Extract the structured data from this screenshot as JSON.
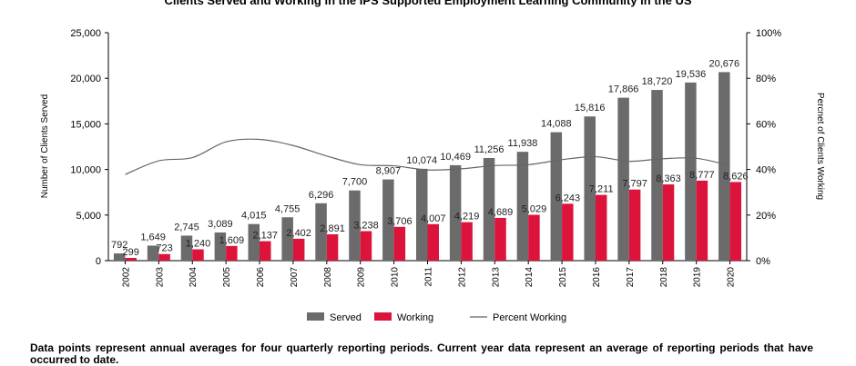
{
  "chart_data": {
    "type": "bar",
    "title": "Clients Served and Working in the IPS Supported Employment Learning Community in the US",
    "ylabel": "Number of Clients Served",
    "y2label": "Percnet of Clients Working",
    "ylim": [
      0,
      25000
    ],
    "y2lim": [
      0,
      100
    ],
    "yticks": [
      "0",
      "5,000",
      "10,000",
      "15,000",
      "20,000",
      "25,000"
    ],
    "y2ticks": [
      "0%",
      "20%",
      "40%",
      "60%",
      "80%",
      "100%"
    ],
    "categories": [
      "2002",
      "2003",
      "2004",
      "2005",
      "2006",
      "2007",
      "2008",
      "2009",
      "2010",
      "2011",
      "2012",
      "2013",
      "2014",
      "2015",
      "2016",
      "2017",
      "2018",
      "2019",
      "2020"
    ],
    "series": [
      {
        "name": "Served",
        "color": "#6b6b6b",
        "values": [
          792,
          1649,
          2745,
          3089,
          4015,
          4755,
          6296,
          7700,
          8907,
          10074,
          10469,
          11256,
          11938,
          14088,
          15816,
          17866,
          18720,
          19536,
          20676
        ],
        "labels": [
          "792",
          "1,649",
          "2,745",
          "3,089",
          "4,015",
          "4,755",
          "6,296",
          "7,700",
          "8,907",
          "10,074",
          "10,469",
          "11,256",
          "11,938",
          "14,088",
          "15,816",
          "17,866",
          "18,720",
          "19,536",
          "20,676"
        ]
      },
      {
        "name": "Working",
        "color": "#dc143c",
        "values": [
          299,
          723,
          1240,
          1609,
          2137,
          2402,
          2891,
          3238,
          3706,
          4007,
          4219,
          4689,
          5029,
          6243,
          7211,
          7797,
          8363,
          8777,
          8626
        ],
        "labels": [
          "299",
          "723",
          "1,240",
          "1,609",
          "2,137",
          "2,402",
          "2,891",
          "3,238",
          "3,706",
          "4,007",
          "4,219",
          "4,689",
          "5,029",
          "6,243",
          "7,211",
          "7,797",
          "8,363",
          "8,777",
          "8,626"
        ]
      },
      {
        "name": "Percent Working",
        "color": "#666666",
        "axis": "right",
        "values": [
          37.8,
          43.8,
          45.2,
          52.1,
          53.2,
          50.5,
          45.9,
          42.1,
          41.6,
          39.8,
          40.3,
          41.7,
          42.1,
          44.3,
          45.6,
          43.6,
          44.7,
          44.9,
          41.7
        ]
      }
    ],
    "legend_position": "bottom"
  },
  "footnote": "Data points represent annual averages for four quarterly reporting periods. Current year data represent an average of reporting periods that have occurred to date."
}
